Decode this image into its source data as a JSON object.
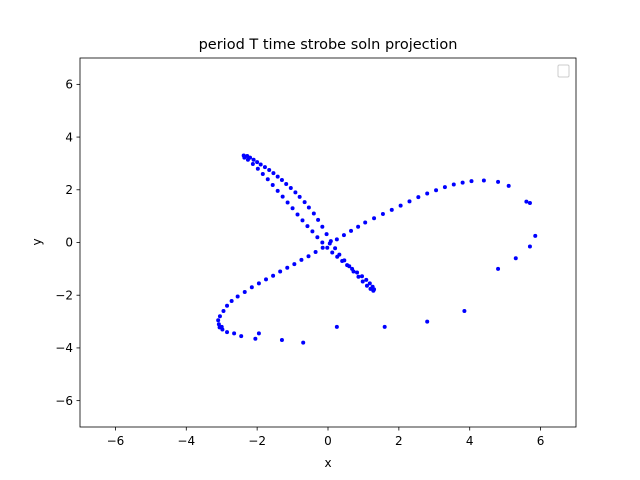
{
  "chart_data": {
    "type": "scatter",
    "title": "period T time strobe soln projection",
    "xlabel": "x",
    "ylabel": "y",
    "xlim": [
      -7,
      7
    ],
    "ylim": [
      -7,
      7
    ],
    "xticks": [
      -6,
      -4,
      -2,
      0,
      2,
      4,
      6
    ],
    "yticks": [
      -6,
      -4,
      -2,
      0,
      2,
      4,
      6
    ],
    "tick_labels_x": [
      "−6",
      "−4",
      "−2",
      "0",
      "2",
      "4",
      "6"
    ],
    "tick_labels_y": [
      "−6",
      "−4",
      "−2",
      "0",
      "2",
      "4",
      "6"
    ],
    "grid": false,
    "legend": {
      "placement": "top-right",
      "entries": []
    },
    "series": [
      {
        "color": "#0000ff",
        "marker": "circle",
        "points": [
          [
            -2.38,
            3.3
          ],
          [
            -2.28,
            3.28
          ],
          [
            -2.2,
            3.22
          ],
          [
            -2.1,
            3.14
          ],
          [
            -2.0,
            3.05
          ],
          [
            -1.9,
            2.96
          ],
          [
            -1.78,
            2.86
          ],
          [
            -1.66,
            2.75
          ],
          [
            -1.54,
            2.63
          ],
          [
            -1.42,
            2.5
          ],
          [
            -1.3,
            2.37
          ],
          [
            -1.18,
            2.22
          ],
          [
            -1.05,
            2.07
          ],
          [
            -0.92,
            1.9
          ],
          [
            -0.8,
            1.73
          ],
          [
            -0.66,
            1.53
          ],
          [
            -0.54,
            1.33
          ],
          [
            -0.4,
            1.1
          ],
          [
            -0.28,
            0.86
          ],
          [
            -0.16,
            0.6
          ],
          [
            -0.04,
            0.32
          ],
          [
            0.08,
            0.05
          ],
          [
            0.2,
            -0.22
          ],
          [
            0.32,
            -0.46
          ],
          [
            0.46,
            -0.68
          ],
          [
            0.6,
            -0.9
          ],
          [
            0.72,
            -1.1
          ],
          [
            0.86,
            -1.3
          ],
          [
            0.98,
            -1.48
          ],
          [
            1.1,
            -1.64
          ],
          [
            1.2,
            -1.76
          ],
          [
            1.28,
            -1.83
          ],
          [
            1.3,
            -1.78
          ],
          [
            1.26,
            -1.68
          ],
          [
            1.18,
            -1.55
          ],
          [
            1.08,
            -1.42
          ],
          [
            0.96,
            -1.28
          ],
          [
            0.82,
            -1.14
          ],
          [
            0.68,
            -1.0
          ],
          [
            0.54,
            -0.86
          ],
          [
            0.4,
            -0.7
          ],
          [
            0.26,
            -0.54
          ],
          [
            0.12,
            -0.38
          ],
          [
            -0.02,
            -0.2
          ],
          [
            -0.16,
            0.0
          ],
          [
            -0.3,
            0.2
          ],
          [
            -0.44,
            0.42
          ],
          [
            -0.58,
            0.62
          ],
          [
            -0.72,
            0.84
          ],
          [
            -0.86,
            1.06
          ],
          [
            -1.0,
            1.3
          ],
          [
            -1.14,
            1.52
          ],
          [
            -1.28,
            1.74
          ],
          [
            -1.42,
            1.96
          ],
          [
            -1.56,
            2.18
          ],
          [
            -1.7,
            2.4
          ],
          [
            -1.84,
            2.6
          ],
          [
            -1.98,
            2.8
          ],
          [
            -2.12,
            2.98
          ],
          [
            -2.26,
            3.14
          ],
          [
            -2.36,
            3.22
          ],
          [
            -3.05,
            -2.8
          ],
          [
            -3.1,
            -2.95
          ],
          [
            -3.08,
            -3.1
          ],
          [
            -3.0,
            -3.2
          ],
          [
            -2.95,
            -2.6
          ],
          [
            -2.85,
            -2.4
          ],
          [
            -2.72,
            -2.22
          ],
          [
            -2.55,
            -2.05
          ],
          [
            -2.35,
            -1.88
          ],
          [
            -2.15,
            -1.7
          ],
          [
            -1.95,
            -1.55
          ],
          [
            -1.75,
            -1.4
          ],
          [
            -1.55,
            -1.26
          ],
          [
            -1.35,
            -1.1
          ],
          [
            -1.15,
            -0.96
          ],
          [
            -0.95,
            -0.82
          ],
          [
            -0.75,
            -0.66
          ],
          [
            -0.55,
            -0.52
          ],
          [
            -0.35,
            -0.36
          ],
          [
            -0.15,
            -0.2
          ],
          [
            0.05,
            -0.04
          ],
          [
            0.25,
            0.12
          ],
          [
            0.45,
            0.28
          ],
          [
            0.65,
            0.44
          ],
          [
            0.85,
            0.6
          ],
          [
            1.05,
            0.76
          ],
          [
            1.3,
            0.92
          ],
          [
            1.55,
            1.08
          ],
          [
            1.8,
            1.24
          ],
          [
            2.05,
            1.4
          ],
          [
            2.3,
            1.56
          ],
          [
            2.55,
            1.72
          ],
          [
            2.8,
            1.86
          ],
          [
            3.05,
            1.98
          ],
          [
            3.3,
            2.1
          ],
          [
            3.55,
            2.2
          ],
          [
            3.8,
            2.27
          ],
          [
            4.05,
            2.33
          ],
          [
            4.4,
            2.35
          ],
          [
            4.8,
            2.3
          ],
          [
            5.1,
            2.15
          ],
          [
            5.6,
            1.55
          ],
          [
            5.7,
            1.5
          ],
          [
            5.85,
            0.25
          ],
          [
            5.7,
            -0.15
          ],
          [
            5.3,
            -0.6
          ],
          [
            4.8,
            -1.0
          ],
          [
            3.85,
            -2.6
          ],
          [
            2.8,
            -3.0
          ],
          [
            1.6,
            -3.2
          ],
          [
            0.25,
            -3.2
          ],
          [
            -0.7,
            -3.8
          ],
          [
            -1.3,
            -3.7
          ],
          [
            -1.95,
            -3.45
          ],
          [
            -2.05,
            -3.65
          ],
          [
            -2.45,
            -3.55
          ],
          [
            -2.65,
            -3.45
          ],
          [
            -2.85,
            -3.4
          ],
          [
            -2.98,
            -3.3
          ],
          [
            -3.06,
            -3.22
          ]
        ]
      }
    ]
  }
}
